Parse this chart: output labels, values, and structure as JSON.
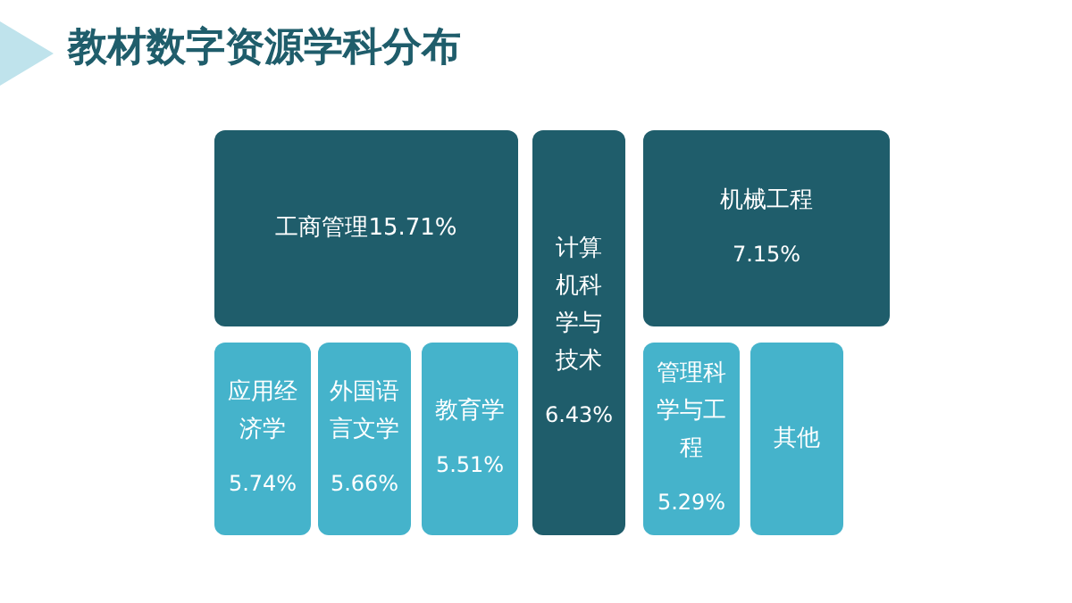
{
  "chart_data": {
    "type": "other",
    "title": "教材数字资源学科分布",
    "categories": [
      "工商管理",
      "计算机科学与技术",
      "机械工程",
      "应用经济学",
      "外国语言文学",
      "教育学",
      "管理科学与工程",
      "其他"
    ],
    "values": [
      15.71,
      6.43,
      7.15,
      5.74,
      5.66,
      5.51,
      5.29,
      null
    ],
    "value_labels": [
      "15.71%",
      "6.43%",
      "7.15%",
      "5.74%",
      "5.66%",
      "5.51%",
      "5.29%",
      null
    ],
    "colors": [
      "#1f5d6b",
      "#1f5d6b",
      "#1f5d6b",
      "#45b3cb",
      "#45b3cb",
      "#45b3cb",
      "#45b3cb",
      "#45b3cb"
    ]
  }
}
